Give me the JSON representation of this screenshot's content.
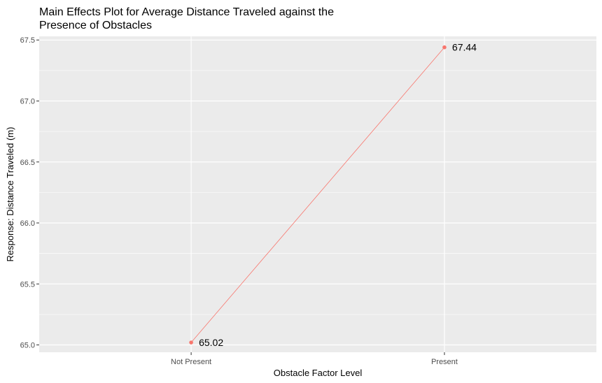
{
  "chart_data": {
    "type": "line",
    "title_lines": [
      "Main Effects Plot for Average Distance Traveled against the",
      "Presence of Obstacles"
    ],
    "xlabel": "Obstacle Factor Level",
    "ylabel": "Response: Distance Traveled (m)",
    "categories": [
      "Not Present",
      "Present"
    ],
    "values": [
      65.02,
      67.44
    ],
    "data_labels": [
      "65.02",
      "67.44"
    ],
    "ylim": [
      64.94,
      67.53
    ],
    "yticks": [
      65.0,
      65.5,
      66.0,
      66.5,
      67.0,
      67.5
    ],
    "ytick_labels": [
      "65.0",
      "65.5",
      "66.0",
      "66.5",
      "67.0",
      "67.5"
    ],
    "grid": true,
    "colors": {
      "series": "#f8766d",
      "panel": "#ebebeb",
      "grid": "#ffffff"
    }
  }
}
